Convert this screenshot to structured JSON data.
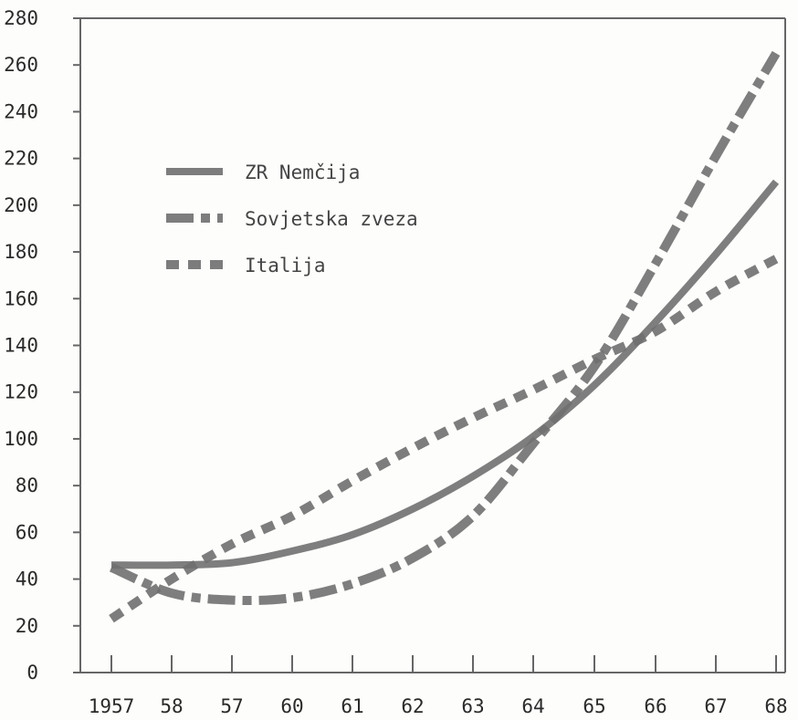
{
  "chart_data": {
    "type": "line",
    "title": "",
    "xlabel": "",
    "ylabel": "",
    "categories": [
      "1957",
      "58",
      "57",
      "60",
      "61",
      "62",
      "63",
      "64",
      "65",
      "66",
      "67",
      "68"
    ],
    "ylim": [
      0,
      280
    ],
    "yticks": [
      0,
      20,
      40,
      60,
      80,
      100,
      120,
      140,
      160,
      180,
      200,
      220,
      240,
      260,
      280
    ],
    "grid": false,
    "legend_position": "upper-left",
    "series": [
      {
        "name": "ZR Nemčija",
        "style": "solid",
        "color": "#707070",
        "values": [
          46,
          46,
          47,
          52,
          59,
          70,
          84,
          101,
          123,
          150,
          179,
          210
        ]
      },
      {
        "name": "Sovjetska zveza",
        "style": "dash-dot",
        "color": "#707070",
        "values": [
          45,
          34,
          31,
          32,
          38,
          49,
          67,
          98,
          131,
          175,
          221,
          265
        ]
      },
      {
        "name": "Italija",
        "style": "dashed",
        "color": "#6f6f6f",
        "values": [
          23,
          40,
          55,
          67,
          82,
          96,
          109,
          121,
          134,
          146,
          163,
          177
        ]
      }
    ]
  }
}
